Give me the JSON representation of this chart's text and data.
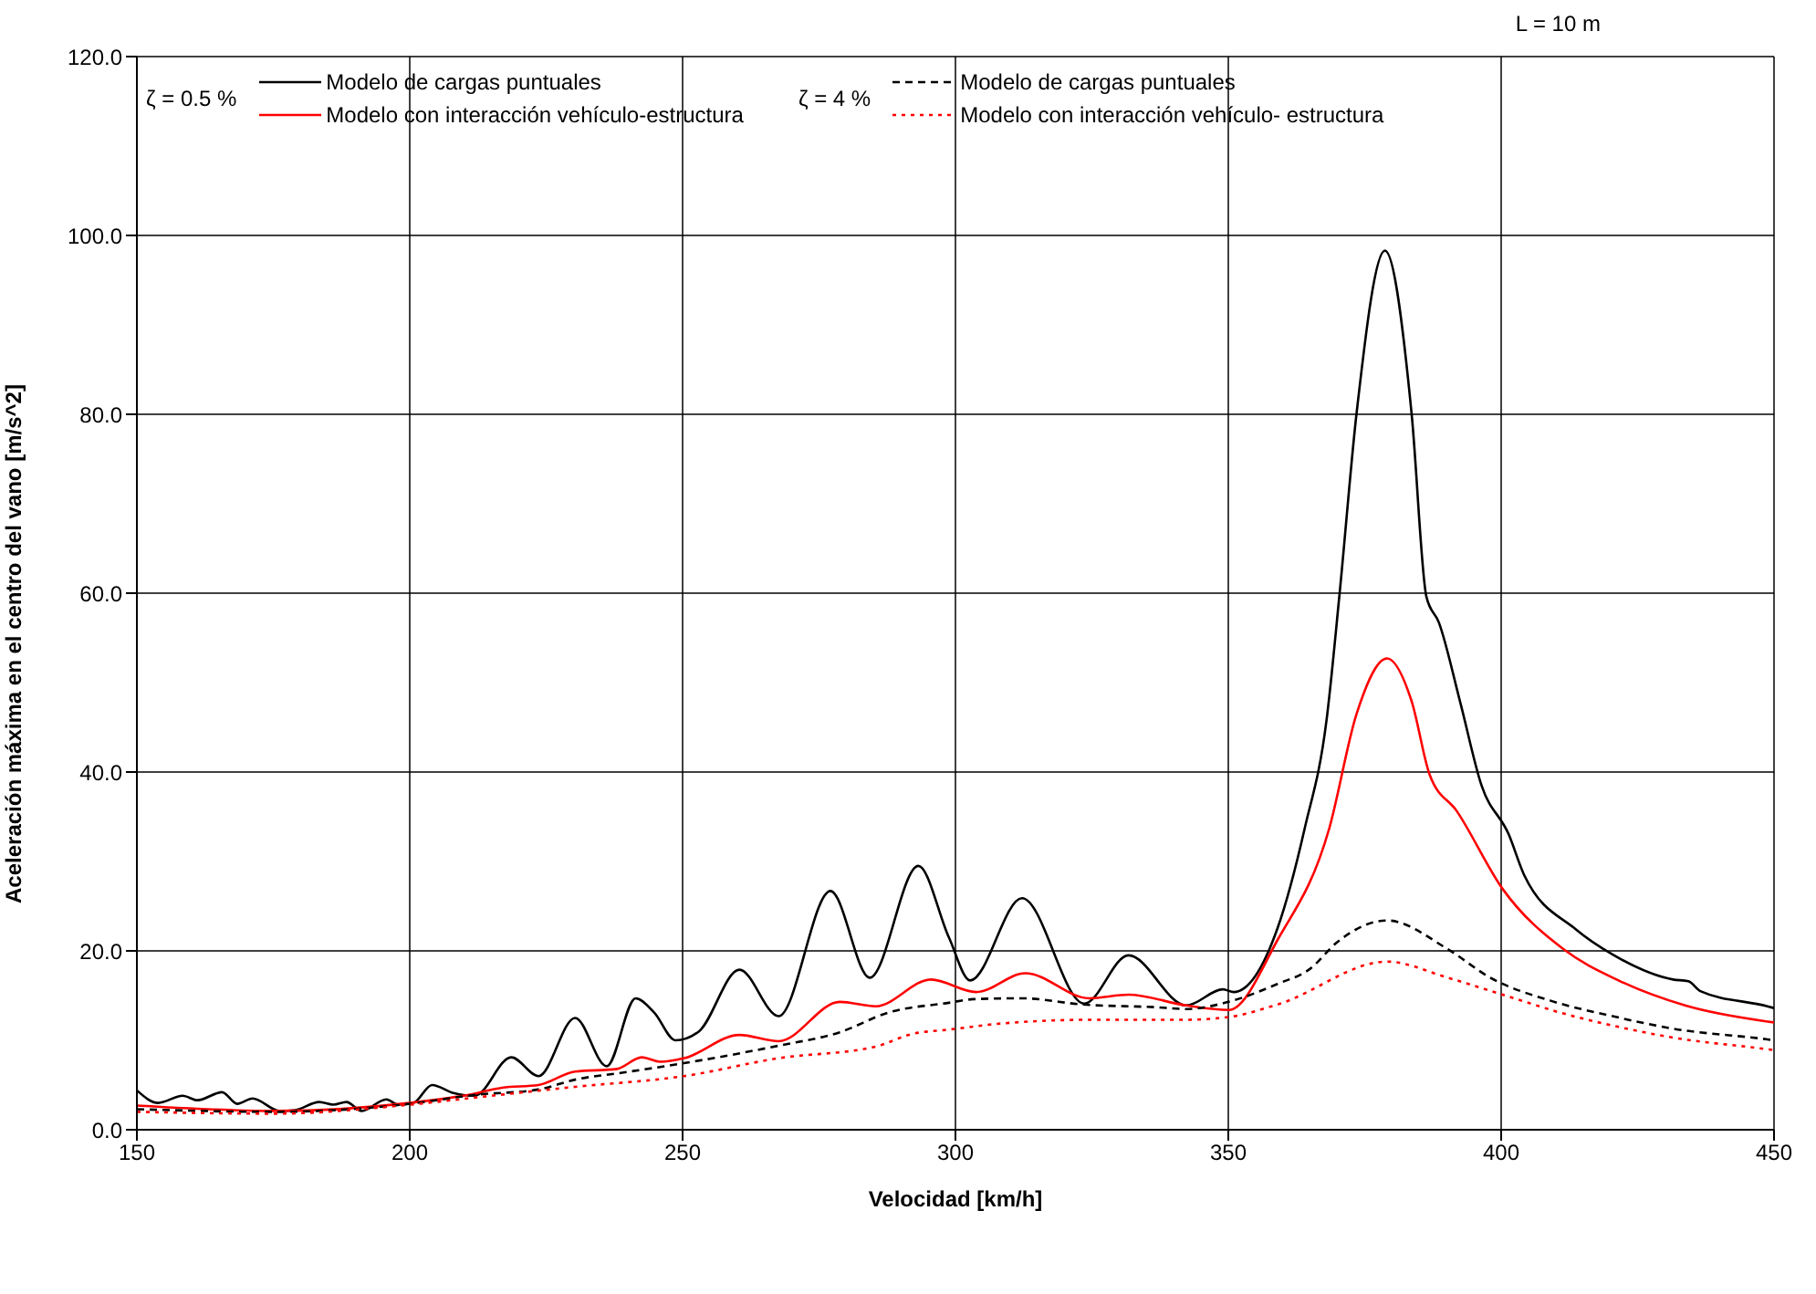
{
  "chart_data": {
    "type": "line",
    "xlabel": "Velocidad [km/h]",
    "ylabel": "Aceleración máxima en el centro del vano [m/s^2]",
    "annotations": [
      "L = 10 m",
      "ζ =  0.5 %",
      "ζ =  4 %"
    ],
    "xlim": [
      150,
      450
    ],
    "xticks": [
      150,
      200,
      250,
      300,
      350,
      400,
      450
    ],
    "ylim": [
      0,
      120
    ],
    "yticks": [
      {
        "value": 0,
        "label": "0.0"
      },
      {
        "value": 20,
        "label": "20.0"
      },
      {
        "value": 40,
        "label": "40.0"
      },
      {
        "value": 60,
        "label": "60.0"
      },
      {
        "value": 80,
        "label": "80.0"
      },
      {
        "value": 100,
        "label": "100.0"
      },
      {
        "value": 120,
        "label": "120.0"
      }
    ],
    "grid": true,
    "legend": "top",
    "marker": "none",
    "series": [
      {
        "name": "Modelo de cargas puntuales",
        "color": "#000000",
        "line_style": "solid",
        "x": [
          150,
          153.9,
          158.4,
          161.1,
          165.6,
          168.4,
          171.2,
          176.2,
          179,
          183.4,
          186,
          188.4,
          191.2,
          195.7,
          197.9,
          200.7,
          204.1,
          208,
          211.9,
          218.6,
          223.6,
          230.3,
          236.1,
          241.4,
          244.8,
          248.7,
          253,
          260.4,
          267.6,
          277.1,
          284.3,
          293.2,
          298.8,
          302.7,
          312.2,
          323.6,
          331.7,
          342.3,
          349,
          351,
          359,
          364,
          368,
          370.4,
          373.5,
          378.7,
          383.6,
          386.3,
          388.6,
          392.5,
          396.4,
          401.4,
          404.2,
          413.7,
          420.4,
          431.5,
          434.3,
          436.5,
          448.8,
          450
        ],
        "values": [
          4.4,
          3.0,
          3.8,
          3.3,
          4.2,
          2.9,
          3.5,
          2.1,
          2.2,
          3.1,
          2.8,
          3.1,
          2.1,
          3.4,
          2.8,
          3.0,
          5.0,
          4.1,
          3.8,
          8.1,
          6.0,
          12.5,
          7.1,
          14.7,
          13.1,
          10.0,
          11.0,
          17.9,
          12.7,
          26.7,
          17.0,
          29.5,
          21.5,
          16.7,
          25.9,
          14.1,
          19.5,
          13.9,
          15.7,
          15.4,
          22.5,
          33.7,
          45.8,
          60.0,
          80.1,
          98.3,
          80.0,
          59.6,
          56.7,
          47.8,
          38.5,
          33.0,
          28.5,
          22.4,
          19.6,
          16.8,
          16.6,
          15.5,
          13.8,
          13.6
        ]
      },
      {
        "name": "Modelo con interacción vehículo-estructura",
        "color": "#ff0000",
        "line_style": "solid",
        "x": [
          150,
          175.6,
          200,
          210.8,
          216.9,
          223.6,
          230.3,
          238,
          242.5,
          245.9,
          250.3,
          260.4,
          267.6,
          278.8,
          285.4,
          295.5,
          303.8,
          312.8,
          324.5,
          331.7,
          342.3,
          350.1,
          359,
          368.5,
          373.5,
          379.1,
          383.6,
          386.9,
          391.9,
          400.3,
          411.4,
          421.5,
          433.7,
          448.8,
          450
        ],
        "values": [
          2.7,
          2.1,
          3.0,
          3.9,
          4.7,
          5.0,
          6.5,
          6.8,
          8.1,
          7.6,
          8.0,
          10.6,
          9.9,
          14.3,
          13.8,
          16.8,
          15.4,
          17.5,
          14.7,
          15.1,
          13.9,
          13.4,
          21.2,
          33.7,
          46.5,
          52.7,
          47.9,
          39.7,
          35.6,
          26.9,
          20.2,
          16.7,
          13.9,
          12.1,
          12.0
        ]
      },
      {
        "name": "Modelo de cargas puntuales",
        "color": "#000000",
        "line_style": "dashed",
        "x": [
          150,
          175,
          200,
          212,
          223.6,
          230.3,
          239.2,
          249.8,
          267.6,
          278.8,
          287.7,
          298.8,
          303.3,
          312.2,
          323.4,
          336.7,
          342.3,
          350,
          359,
          365,
          370,
          379.1,
          390.2,
          398,
          409.2,
          420.4,
          431.5,
          448.8,
          450
        ],
        "values": [
          2.3,
          2.0,
          2.9,
          3.9,
          4.5,
          5.6,
          6.4,
          7.4,
          9.4,
          10.9,
          13.1,
          14.2,
          14.6,
          14.7,
          14.0,
          13.7,
          13.5,
          14.3,
          16.3,
          18.0,
          21.0,
          23.4,
          20.2,
          17.0,
          14.4,
          12.7,
          11.3,
          10.1,
          10.0
        ]
      },
      {
        "name": "Modelo con interacción vehículo- estructura",
        "color": "#ff0000",
        "line_style": "dotted",
        "x": [
          150,
          175,
          200,
          212,
          230.3,
          250.3,
          267.6,
          285.4,
          292,
          298.8,
          308.8,
          325.2,
          342.3,
          350,
          359,
          379.1,
          390.2,
          400.3,
          411.4,
          421.5,
          431.5,
          448.8,
          450
        ],
        "values": [
          2.0,
          1.8,
          2.8,
          3.6,
          4.8,
          6.0,
          8.0,
          9.3,
          10.7,
          11.2,
          11.9,
          12.3,
          12.3,
          12.6,
          14.0,
          18.8,
          17.0,
          15.1,
          13.0,
          11.5,
          10.3,
          9.0,
          8.9
        ]
      }
    ]
  }
}
